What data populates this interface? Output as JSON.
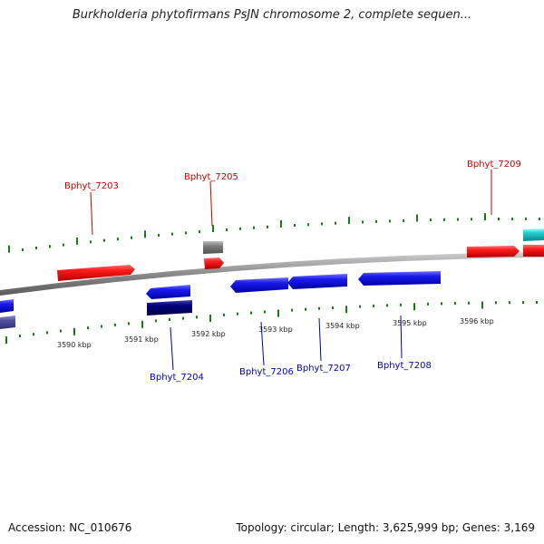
{
  "title": "Burkholderia phytofirmans PsJN chromosome 2, complete sequen...",
  "footer": {
    "accession": "Accession: NC_010676",
    "summary": "Topology: circular; Length: 3,625,999 bp; Genes: 3,169"
  },
  "colors": {
    "forward_gene": "#ee0000",
    "reverse_gene": "#1010dd",
    "dark_gene": "#000080",
    "gray_gene": "#808080",
    "cyan_gene": "#22cccc",
    "purple_gene": "#5050a0",
    "backbone": "#8a8a8a",
    "ticks": "#1a7a1a",
    "label_forward": "#cc0000",
    "label_reverse": "#0000aa"
  },
  "scale": {
    "unit": "kbp",
    "ticks": [
      {
        "kbp": 3590,
        "label": "3590 kbp"
      },
      {
        "kbp": 3591,
        "label": "3591 kbp"
      },
      {
        "kbp": 3592,
        "label": "3592 kbp"
      },
      {
        "kbp": 3593,
        "label": "3593 kbp"
      },
      {
        "kbp": 3594,
        "label": "3594 kbp"
      },
      {
        "kbp": 3595,
        "label": "3595 kbp"
      },
      {
        "kbp": 3596,
        "label": "3596 kbp"
      }
    ]
  },
  "genes": [
    {
      "name": "Bphyt_7203",
      "label": "Bphyt_7203",
      "strand": "forward",
      "color": "forward_gene",
      "labeled": true
    },
    {
      "name": "Bphyt_7204",
      "label": "Bphyt_7204",
      "strand": "reverse",
      "color": "reverse_gene",
      "labeled": true
    },
    {
      "name": "Bphyt_7205",
      "label": "Bphyt_7205",
      "strand": "forward",
      "color": "forward_gene",
      "labeled": true
    },
    {
      "name": "Bphyt_7206",
      "label": "Bphyt_7206",
      "strand": "reverse",
      "color": "reverse_gene",
      "labeled": true
    },
    {
      "name": "Bphyt_7207",
      "label": "Bphyt_7207",
      "strand": "reverse",
      "color": "reverse_gene",
      "labeled": true
    },
    {
      "name": "Bphyt_7208",
      "label": "Bphyt_7208",
      "strand": "reverse",
      "color": "reverse_gene",
      "labeled": true
    },
    {
      "name": "Bphyt_7209",
      "label": "Bphyt_7209",
      "strand": "forward",
      "color": "forward_gene",
      "labeled": true
    }
  ]
}
